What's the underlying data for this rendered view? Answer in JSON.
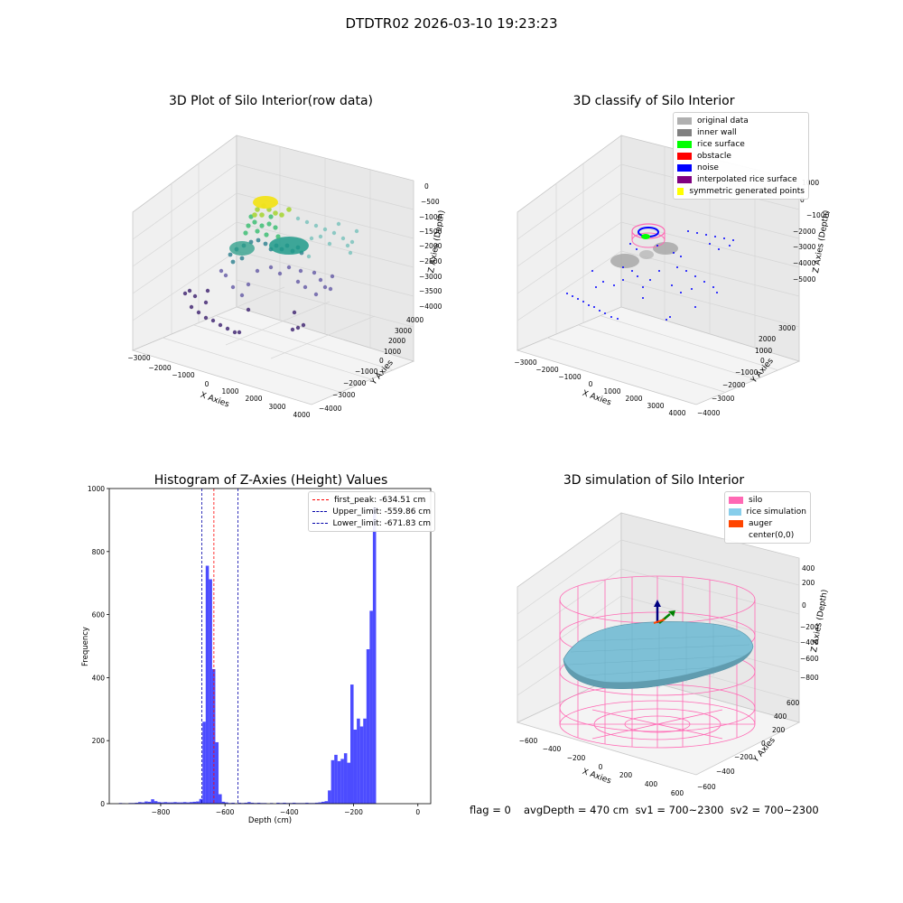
{
  "suptitle": "DTDTR02 2026-03-10 19:23:23",
  "footer": {
    "flag": "flag = 0",
    "stats": "avgDepth = 470 cm  sv1 = 700~2300  sv2 = 700~2300"
  },
  "colors": {
    "hist_bar": "#0000ff",
    "peak_line": "#ff0000",
    "limit_line": "#0000aa",
    "silo": "#ff69b4",
    "rice": "#87ceeb",
    "auger": "#ff4500"
  },
  "plot1": {
    "title": "3D Plot of Silo Interior(row data)",
    "xlabel": "X Axies",
    "ylabel": "Y Axies",
    "zlabel": "Z Axies (Depth)",
    "xticks": [
      "−3000",
      "−2000",
      "−1000",
      "0",
      "1000",
      "2000",
      "3000",
      "4000"
    ],
    "yticks": [
      "−4000",
      "−3000",
      "−2000",
      "−1000",
      "0",
      "1000",
      "2000",
      "3000",
      "4000"
    ],
    "zticks": [
      "0",
      "−500",
      "−1000",
      "−1500",
      "−2000",
      "−2500",
      "−3000",
      "−3500",
      "−4000"
    ]
  },
  "plot2": {
    "title": "3D classify of Silo Interior",
    "xlabel": "X Axies",
    "ylabel": "Y Axies",
    "zlabel": "Z Axies (Depth)",
    "xticks": [
      "−3000",
      "−2000",
      "−1000",
      "0",
      "1000",
      "2000",
      "3000",
      "4000"
    ],
    "yticks": [
      "−4000",
      "−3000",
      "−2000",
      "−1000",
      "0",
      "1000",
      "2000",
      "3000"
    ],
    "zticks": [
      "1000",
      "0",
      "−1000",
      "−2000",
      "−3000",
      "−4000",
      "−5000"
    ],
    "legend": [
      {
        "label": "original data",
        "color": "#b0b0b0"
      },
      {
        "label": "inner wall",
        "color": "#808080"
      },
      {
        "label": "rice surface",
        "color": "#00ff00"
      },
      {
        "label": "obstacle",
        "color": "#ff0000"
      },
      {
        "label": "noise",
        "color": "#0000ff"
      },
      {
        "label": "interpolated rice surface",
        "color": "#800080"
      },
      {
        "label": "symmetric generated points",
        "color": "#ffff00"
      }
    ]
  },
  "plot4": {
    "title": "3D simulation of Silo Interior",
    "xlabel": "X Axies",
    "ylabel": "Y Axies",
    "zlabel": "Z Axies (Depth)",
    "xticks": [
      "−600",
      "−400",
      "−200",
      "0",
      "200",
      "400",
      "600"
    ],
    "yticks": [
      "−600",
      "−400",
      "−200",
      "0",
      "200",
      "400",
      "600"
    ],
    "zticks": [
      "400",
      "200",
      "0",
      "−200",
      "−400",
      "−600",
      "−800"
    ],
    "legend": [
      {
        "label": "silo",
        "color": "#ff69b4"
      },
      {
        "label": "rice simulation",
        "color": "#87ceeb"
      },
      {
        "label": "auger",
        "color": "#ff4500"
      },
      {
        "label": "center(0,0)",
        "color": ""
      }
    ]
  },
  "chart_data": {
    "type": "bar",
    "title": "Histogram of Z-Axies (Height) Values",
    "xlabel": "Depth (cm)",
    "ylabel": "Frequency",
    "xlim": [
      -960,
      40
    ],
    "ylim": [
      0,
      1000
    ],
    "bin_width": 10,
    "xticks": [
      -800,
      -600,
      -400,
      -200,
      0
    ],
    "yticks": [
      0,
      200,
      400,
      600,
      800,
      1000
    ],
    "bins": [
      {
        "x": -930,
        "v": 2
      },
      {
        "x": -920,
        "v": 1
      },
      {
        "x": -900,
        "v": 2
      },
      {
        "x": -890,
        "v": 2
      },
      {
        "x": -880,
        "v": 3
      },
      {
        "x": -870,
        "v": 5
      },
      {
        "x": -860,
        "v": 4
      },
      {
        "x": -850,
        "v": 7
      },
      {
        "x": -840,
        "v": 6
      },
      {
        "x": -830,
        "v": 14
      },
      {
        "x": -820,
        "v": 8
      },
      {
        "x": -810,
        "v": 5
      },
      {
        "x": -800,
        "v": 4
      },
      {
        "x": -790,
        "v": 5
      },
      {
        "x": -780,
        "v": 4
      },
      {
        "x": -770,
        "v": 4
      },
      {
        "x": -760,
        "v": 5
      },
      {
        "x": -750,
        "v": 4
      },
      {
        "x": -740,
        "v": 4
      },
      {
        "x": -730,
        "v": 5
      },
      {
        "x": -720,
        "v": 4
      },
      {
        "x": -710,
        "v": 5
      },
      {
        "x": -700,
        "v": 6
      },
      {
        "x": -690,
        "v": 7
      },
      {
        "x": -680,
        "v": 15
      },
      {
        "x": -670,
        "v": 260
      },
      {
        "x": -660,
        "v": 755
      },
      {
        "x": -650,
        "v": 712
      },
      {
        "x": -640,
        "v": 427
      },
      {
        "x": -630,
        "v": 195
      },
      {
        "x": -620,
        "v": 30
      },
      {
        "x": -610,
        "v": 6
      },
      {
        "x": -600,
        "v": 4
      },
      {
        "x": -590,
        "v": 2
      },
      {
        "x": -580,
        "v": 3
      },
      {
        "x": -570,
        "v": 1
      },
      {
        "x": -560,
        "v": 3
      },
      {
        "x": -550,
        "v": 2
      },
      {
        "x": -540,
        "v": 3
      },
      {
        "x": -530,
        "v": 5
      },
      {
        "x": -520,
        "v": 3
      },
      {
        "x": -510,
        "v": 2
      },
      {
        "x": -500,
        "v": 3
      },
      {
        "x": -490,
        "v": 2
      },
      {
        "x": -480,
        "v": 2
      },
      {
        "x": -460,
        "v": 2
      },
      {
        "x": -440,
        "v": 3
      },
      {
        "x": -430,
        "v": 2
      },
      {
        "x": -420,
        "v": 3
      },
      {
        "x": -410,
        "v": 2
      },
      {
        "x": -400,
        "v": 2
      },
      {
        "x": -390,
        "v": 3
      },
      {
        "x": -380,
        "v": 2
      },
      {
        "x": -370,
        "v": 2
      },
      {
        "x": -360,
        "v": 2
      },
      {
        "x": -350,
        "v": 3
      },
      {
        "x": -340,
        "v": 2
      },
      {
        "x": -330,
        "v": 2
      },
      {
        "x": -320,
        "v": 3
      },
      {
        "x": -310,
        "v": 4
      },
      {
        "x": -300,
        "v": 6
      },
      {
        "x": -290,
        "v": 8
      },
      {
        "x": -280,
        "v": 42
      },
      {
        "x": -270,
        "v": 138
      },
      {
        "x": -260,
        "v": 155
      },
      {
        "x": -250,
        "v": 135
      },
      {
        "x": -240,
        "v": 142
      },
      {
        "x": -230,
        "v": 160
      },
      {
        "x": -220,
        "v": 130
      },
      {
        "x": -210,
        "v": 378
      },
      {
        "x": -200,
        "v": 235
      },
      {
        "x": -190,
        "v": 270
      },
      {
        "x": -180,
        "v": 245
      },
      {
        "x": -170,
        "v": 270
      },
      {
        "x": -160,
        "v": 490
      },
      {
        "x": -150,
        "v": 612
      },
      {
        "x": -140,
        "v": 940
      }
    ],
    "lines": [
      {
        "label": "first_peak: -634.51 cm",
        "x": -634.51,
        "color": "#ff0000"
      },
      {
        "label": "Upper_limit: -559.86 cm",
        "x": -559.86,
        "color": "#0000aa"
      },
      {
        "label": "Lower_limit: -671.83 cm",
        "x": -671.83,
        "color": "#0000aa"
      }
    ]
  }
}
